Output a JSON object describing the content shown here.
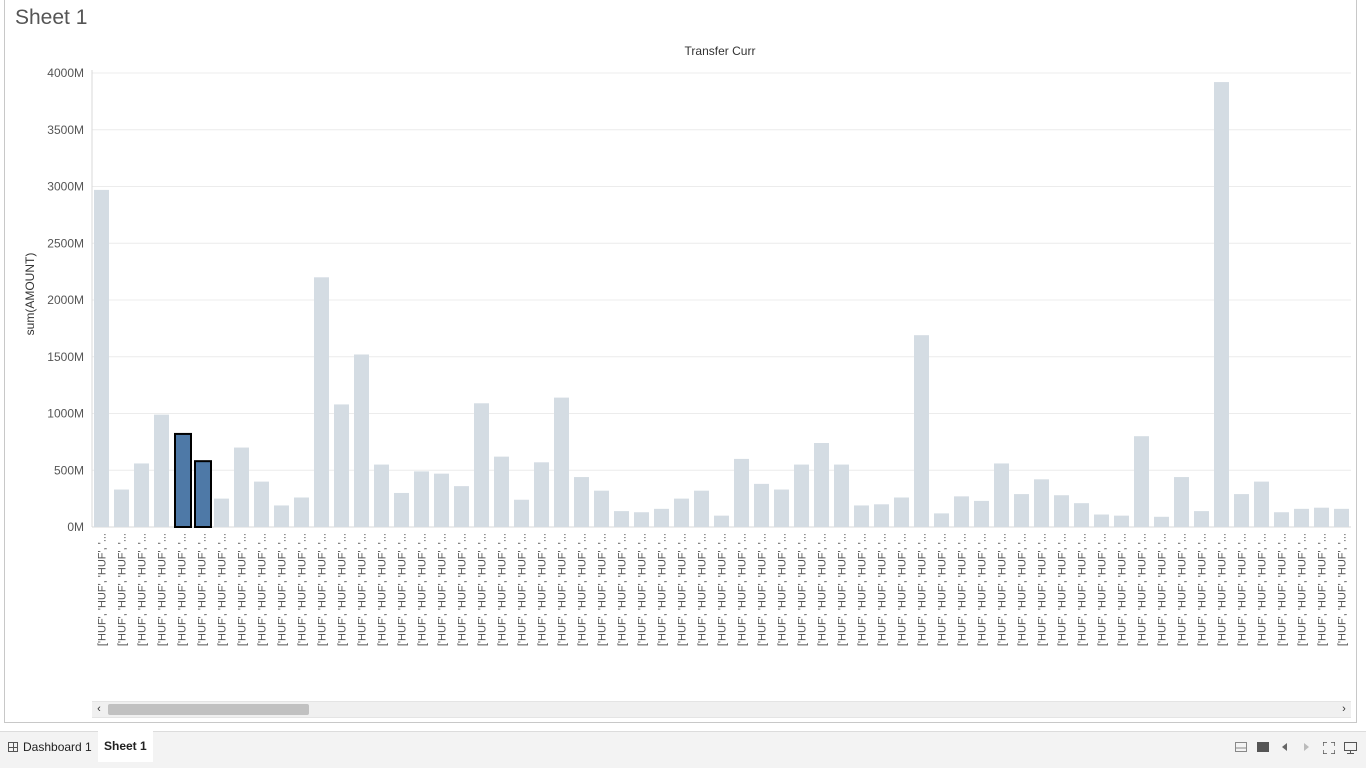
{
  "sheet": {
    "title": "Sheet 1"
  },
  "tabs": [
    {
      "label": "Dashboard 1",
      "active": false
    },
    {
      "label": "Sheet 1",
      "active": true
    }
  ],
  "toolbar_icons": [
    "show-sheets-icon",
    "filmstrip-icon",
    "prev-sheet-icon",
    "next-sheet-icon",
    "fit-icon",
    "presentation-icon"
  ],
  "scrollbar": {
    "left_arrow": "‹",
    "right_arrow": "›"
  },
  "colors": {
    "bar": "#d4dce3",
    "highlight": "#4e79a7",
    "highlight_border": "#000000"
  },
  "chart_data": {
    "type": "bar",
    "title": "Transfer Curr",
    "ylabel": "sum(AMOUNT)",
    "xlabel": "",
    "ylim": [
      0,
      4000
    ],
    "yticks": [
      0,
      500,
      1000,
      1500,
      2000,
      2500,
      3000,
      3500,
      4000
    ],
    "ytick_labels": [
      "0M",
      "500M",
      "1000M",
      "1500M",
      "2000M",
      "2500M",
      "3000M",
      "3500M",
      "4000M"
    ],
    "category_label": "['HUF', 'HUF', 'HUF', '...",
    "values": [
      2970,
      330,
      560,
      990,
      820,
      580,
      250,
      700,
      400,
      190,
      260,
      2200,
      1080,
      1520,
      550,
      300,
      490,
      470,
      360,
      1090,
      620,
      240,
      570,
      1140,
      440,
      320,
      140,
      130,
      160,
      250,
      320,
      100,
      600,
      380,
      330,
      550,
      740,
      550,
      190,
      200,
      260,
      1690,
      120,
      270,
      230,
      560,
      290,
      420,
      280,
      210,
      110,
      100,
      800,
      90,
      440,
      140,
      3920,
      290,
      400,
      130,
      160,
      170,
      160
    ],
    "highlighted_indices": [
      4,
      5
    ],
    "grid": true
  }
}
